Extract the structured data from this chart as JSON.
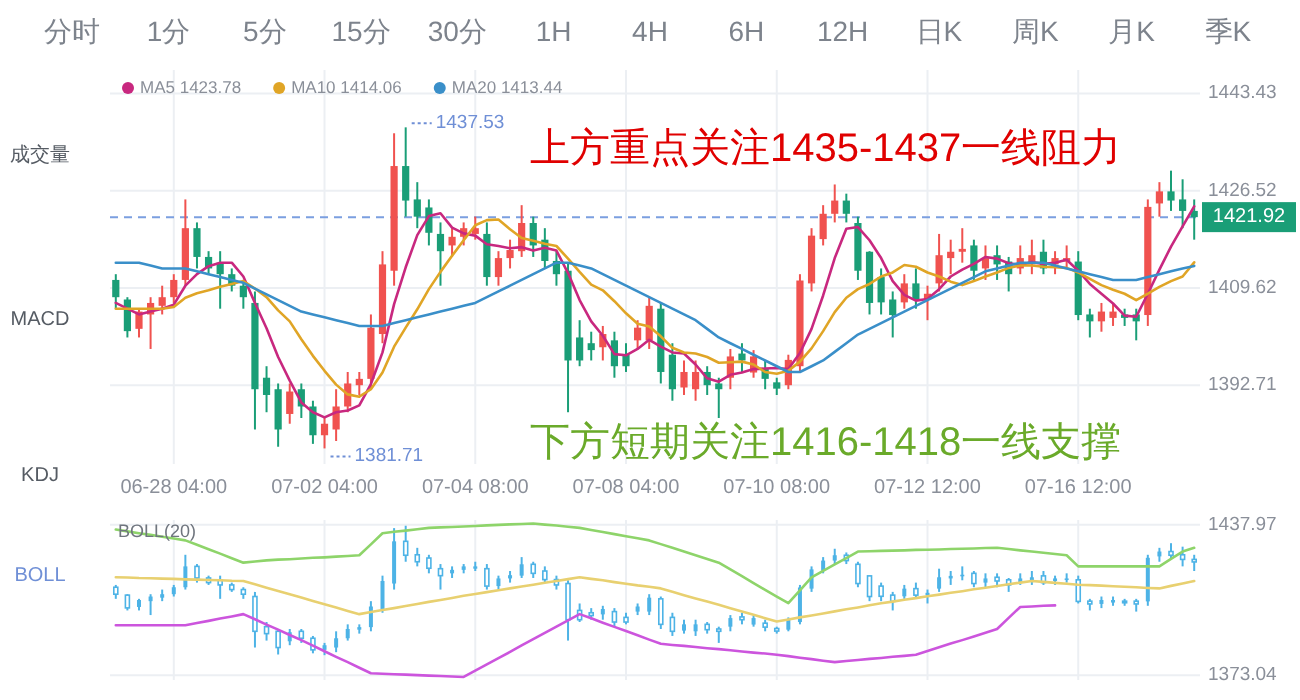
{
  "chart_data": [
    {
      "type": "candlestick",
      "categories": [
        null,
        null,
        null,
        null,
        null,
        "06-28 04:00",
        null,
        null,
        null,
        null,
        null,
        null,
        null,
        null,
        null,
        null,
        null,
        null,
        "07-02 04:00",
        null,
        null,
        null,
        null,
        null,
        null,
        null,
        null,
        null,
        null,
        null,
        null,
        "07-04 08:00",
        null,
        null,
        null,
        null,
        null,
        null,
        null,
        null,
        null,
        null,
        null,
        null,
        "07-08 04:00",
        null,
        null,
        null,
        null,
        null,
        null,
        null,
        null,
        null,
        null,
        null,
        null,
        "07-10 08:00",
        null,
        null,
        null,
        null,
        null,
        null,
        null,
        null,
        null,
        null,
        null,
        null,
        "07-12 12:00",
        null,
        null,
        null,
        null,
        null,
        null,
        null,
        null,
        null,
        null,
        null,
        null,
        "07-16 12:00",
        null,
        null,
        null,
        null,
        null,
        null,
        null,
        null,
        null,
        null
      ],
      "series": [
        {
          "type": "candlestick",
          "colors": [
            "#1a9e77",
            "#1a9e77",
            "#f0524f",
            "#f0524f",
            "#f0524f",
            "#f0524f",
            "#f0524f",
            "#1a9e77",
            "#1a9e77",
            "#1a9e77",
            "#1a9e77",
            "#1a9e77",
            "#1a9e77",
            "#1a9e77",
            "#1a9e77",
            "#f0524f",
            "#1a9e77",
            "#1a9e77",
            "#f0524f",
            "#f0524f",
            "#f0524f",
            "#f0524f",
            "#f0524f",
            "#f0524f",
            "#f0524f",
            "#1a9e77",
            "#1a9e77",
            "#1a9e77",
            "#1a9e77",
            "#f0524f",
            "#f0524f",
            "#f0524f",
            "#1a9e77",
            "#f0524f",
            "#f0524f",
            "#f0524f",
            "#1a9e77",
            "#1a9e77",
            "#1a9e77",
            "#1a9e77",
            "#1a9e77",
            "#1a9e77",
            "#f0524f",
            "#1a9e77",
            "#1a9e77",
            "#f0524f",
            "#f0524f",
            "#1a9e77",
            "#1a9e77",
            "#f0524f",
            "#f0524f",
            "#1a9e77",
            "#1a9e77",
            "#f0524f",
            "#1a9e77",
            "#f0524f",
            "#1a9e77",
            "#1a9e77",
            "#f0524f",
            "#f0524f",
            "#f0524f",
            "#f0524f",
            "#f0524f",
            "#1a9e77",
            "#1a9e77",
            "#1a9e77",
            "#1a9e77",
            "#1a9e77",
            "#f0524f",
            "#1a9e77",
            "#f0524f",
            "#f0524f",
            "#f0524f",
            "#f0524f",
            "#1a9e77",
            "#f0524f",
            "#1a9e77",
            "#1a9e77",
            "#f0524f",
            "#f0524f",
            "#1a9e77",
            "#f0524f",
            "#f0524f",
            "#1a9e77",
            "#1a9e77",
            "#f0524f",
            "#f0524f",
            "#1a9e77",
            "#1a9e77",
            "#f0524f",
            "#f0524f",
            "#1a9e77",
            "#1a9e77",
            "#1a9e77"
          ],
          "ohlc": [
            [
              1411,
              1412,
              1406,
              1408
            ],
            [
              1407.6,
              1408,
              1401,
              1402.1
            ],
            [
              1402.5,
              1406,
              1401,
              1405.5
            ],
            [
              1405,
              1408,
              1399,
              1407
            ],
            [
              1406.5,
              1410,
              1405,
              1408
            ],
            [
              1408,
              1412,
              1407,
              1411
            ],
            [
              1411,
              1425,
              1410,
              1420
            ],
            [
              1420,
              1421,
              1413,
              1415
            ],
            [
              1415,
              1416,
              1412,
              1413
            ],
            [
              1414,
              1416,
              1406,
              1412
            ],
            [
              1412,
              1413,
              1409,
              1410
            ],
            [
              1410,
              1411,
              1406,
              1408
            ],
            [
              1407,
              1409,
              1385,
              1392
            ],
            [
              1394,
              1396,
              1388,
              1391
            ],
            [
              1392,
              1393,
              1382,
              1385
            ],
            [
              1387.7,
              1393,
              1386,
              1391.6
            ],
            [
              1392,
              1393,
              1387,
              1389
            ],
            [
              1389,
              1390,
              1382.5,
              1384
            ],
            [
              1384,
              1387,
              1381.71,
              1386
            ],
            [
              1385,
              1392,
              1383,
              1389
            ],
            [
              1389,
              1395,
              1388,
              1393
            ],
            [
              1392.7,
              1395,
              1391,
              1393.8
            ],
            [
              1393.8,
              1405,
              1392,
              1402.7
            ],
            [
              1401.6,
              1416,
              1400,
              1413.7
            ],
            [
              1412.6,
              1436.5,
              1410,
              1430.8
            ],
            [
              1430.8,
              1437.53,
              1422,
              1424.8
            ],
            [
              1425,
              1428,
              1420,
              1422
            ],
            [
              1423.6,
              1425,
              1417,
              1419.2
            ],
            [
              1419,
              1421,
              1410,
              1416
            ],
            [
              1417,
              1420,
              1415,
              1418.5
            ],
            [
              1418.5,
              1421,
              1417,
              1420
            ],
            [
              1419,
              1422,
              1418,
              1420
            ],
            [
              1419,
              1421,
              1410,
              1411.5
            ],
            [
              1411.5,
              1416,
              1410,
              1414.8
            ],
            [
              1414.8,
              1418,
              1413,
              1416.2
            ],
            [
              1416,
              1424,
              1415,
              1420.9
            ],
            [
              1420.9,
              1422,
              1415,
              1417
            ],
            [
              1418,
              1420,
              1413,
              1414.3
            ],
            [
              1414.3,
              1416,
              1410,
              1412
            ],
            [
              1412.6,
              1414,
              1388,
              1397
            ],
            [
              1401,
              1404,
              1396,
              1397
            ],
            [
              1400,
              1402,
              1397,
              1398.8
            ],
            [
              1399.3,
              1403,
              1397,
              1401.6
            ],
            [
              1400.5,
              1402,
              1394,
              1396
            ],
            [
              1398,
              1400,
              1395,
              1396
            ],
            [
              1400.5,
              1404,
              1399,
              1402.7
            ],
            [
              1400.5,
              1408,
              1399,
              1406.5
            ],
            [
              1406,
              1407,
              1393,
              1395
            ],
            [
              1398,
              1400,
              1390,
              1392
            ],
            [
              1392.3,
              1397,
              1391,
              1395
            ],
            [
              1392,
              1397,
              1390,
              1395
            ],
            [
              1395,
              1396,
              1391,
              1392.7
            ],
            [
              1393,
              1394,
              1387,
              1392
            ],
            [
              1394,
              1399,
              1392,
              1397.7
            ],
            [
              1398.2,
              1400,
              1395,
              1397
            ],
            [
              1394.9,
              1398.8,
              1394,
              1397.7
            ],
            [
              1395.5,
              1397,
              1392,
              1393.8
            ],
            [
              1393.2,
              1394,
              1391,
              1392.1
            ],
            [
              1392.7,
              1398,
              1392,
              1397.1
            ],
            [
              1396,
              1412,
              1395,
              1410.9
            ],
            [
              1410.4,
              1420,
              1409,
              1418.7
            ],
            [
              1418.1,
              1424,
              1417,
              1422.5
            ],
            [
              1422.5,
              1427.6,
              1421,
              1424.8
            ],
            [
              1424.8,
              1426,
              1421,
              1422.5
            ],
            [
              1420.9,
              1422,
              1411,
              1412.6
            ],
            [
              1415.9,
              1416,
              1405,
              1407
            ],
            [
              1411.5,
              1413,
              1405,
              1407.1
            ],
            [
              1407.6,
              1409,
              1401,
              1404.9
            ],
            [
              1407.1,
              1412,
              1406,
              1410.4
            ],
            [
              1410.4,
              1413,
              1406,
              1407.6
            ],
            [
              1407.6,
              1410,
              1404,
              1408.6
            ],
            [
              1410.4,
              1419,
              1409,
              1415.3
            ],
            [
              1414.8,
              1418,
              1412,
              1415.9
            ],
            [
              1415.9,
              1420,
              1414,
              1416.4
            ],
            [
              1417,
              1418,
              1411,
              1412.6
            ],
            [
              1413,
              1417,
              1411,
              1414.8
            ],
            [
              1415.3,
              1417,
              1411,
              1413.7
            ],
            [
              1414.2,
              1415,
              1409,
              1412
            ],
            [
              1413,
              1417,
              1412,
              1414.8
            ],
            [
              1413.7,
              1418,
              1412,
              1415.3
            ],
            [
              1415.9,
              1418,
              1412,
              1413
            ],
            [
              1413.7,
              1416,
              1412,
              1414.8
            ],
            [
              1414.2,
              1417,
              1413,
              1414.8
            ],
            [
              1414.2,
              1416,
              1404,
              1404.9
            ],
            [
              1405,
              1406,
              1401,
              1403.8
            ],
            [
              1403.8,
              1407,
              1402,
              1405.5
            ],
            [
              1404.4,
              1407,
              1403,
              1405.5
            ],
            [
              1405,
              1406,
              1403,
              1404.4
            ],
            [
              1405,
              1406,
              1400.5,
              1403.8
            ],
            [
              1404.9,
              1425,
              1403,
              1423.7
            ],
            [
              1424.3,
              1428,
              1422,
              1426.4
            ],
            [
              1426.4,
              1430,
              1423,
              1424.8
            ],
            [
              1425,
              1428.5,
              1420,
              1423
            ],
            [
              1423,
              1425,
              1418,
              1421.92
            ]
          ]
        },
        {
          "type": "line",
          "name": "MA5 1423.78",
          "color": "#c8287f",
          "values": [
            1407,
            1406,
            1405,
            1405.5,
            1406,
            1406.7,
            1410,
            1412,
            1413.4,
            1414,
            1414,
            1411.6,
            1407,
            1402.6,
            1397.6,
            1393.5,
            1389.7,
            1388,
            1387.1,
            1388,
            1388.3,
            1389.2,
            1392.9,
            1398.4,
            1406.8,
            1413.2,
            1418.8,
            1422.1,
            1422.6,
            1420.1,
            1419.1,
            1418.7,
            1417.2,
            1416.9,
            1416.5,
            1416.7,
            1416.1,
            1416.6,
            1416.1,
            1412.2,
            1407.5,
            1403.8,
            1401.3,
            1398.1,
            1397.9,
            1399,
            1400.6,
            1399.4,
            1398.4,
            1398.2,
            1396.3,
            1393.9,
            1393.3,
            1394.5,
            1394.9,
            1395.5,
            1395.6,
            1395.7,
            1395.5,
            1398.3,
            1402.5,
            1408.3,
            1414.8,
            1419.9,
            1420.2,
            1417.9,
            1414.8,
            1410.8,
            1408.4,
            1407.4,
            1407.7,
            1409.4,
            1411.6,
            1412.8,
            1413.8,
            1415,
            1414.7,
            1413.9,
            1413.6,
            1414.1,
            1413.8,
            1414,
            1414.5,
            1412.6,
            1410.3,
            1408.6,
            1406.9,
            1404.8,
            1404.6,
            1408.6,
            1412.8,
            1416.8,
            1420.3,
            1423.78
          ]
        },
        {
          "type": "line",
          "name": "MA10 1414.06",
          "color": "#e0a526",
          "values": [
            1406,
            1406,
            1406,
            1406,
            1406,
            1406.3,
            1407.9,
            1408.7,
            1409.2,
            1409.8,
            1410.3,
            1410.8,
            1409.5,
            1408,
            1405.7,
            1403.8,
            1400.7,
            1397.8,
            1395.2,
            1392.8,
            1391.1,
            1390.7,
            1392,
            1394.9,
            1399.4,
            1402.7,
            1405.9,
            1409.4,
            1412.4,
            1415.2,
            1417.9,
            1420.5,
            1421.4,
            1421.5,
            1419.8,
            1418.3,
            1417.8,
            1417.3,
            1416.9,
            1414.7,
            1412.4,
            1410.2,
            1409.2,
            1407.3,
            1405.2,
            1403.4,
            1402.9,
            1401.2,
            1399.2,
            1398.4,
            1398.2,
            1397.6,
            1396.6,
            1396.7,
            1396.8,
            1396.3,
            1395,
            1394.7,
            1395.2,
            1396.8,
            1399.1,
            1402.1,
            1405.4,
            1407.9,
            1409.4,
            1410.3,
            1411.6,
            1412.3,
            1413.6,
            1413.3,
            1412.3,
            1411.6,
            1410.7,
            1410.1,
            1410.8,
            1411.6,
            1412.3,
            1413.1,
            1413.5,
            1413.5,
            1413.3,
            1413.2,
            1413.1,
            1412.3,
            1411.2,
            1410.1,
            1409.3,
            1408.6,
            1407.5,
            1408.6,
            1409.8,
            1410.8,
            1411.6,
            1414.06
          ]
        },
        {
          "type": "line",
          "name": "MA20 1413.44",
          "color": "#3a8fc9",
          "values": [
            1414,
            1414,
            1414,
            1413.5,
            1413,
            1413,
            1413,
            1412.5,
            1412,
            1411.5,
            1411,
            1410.5,
            1409.5,
            1408.5,
            1407.5,
            1406.5,
            1405.5,
            1405,
            1404.5,
            1404,
            1403.5,
            1403,
            1403,
            1403,
            1403.5,
            1404,
            1404.5,
            1405,
            1405.5,
            1406,
            1406.5,
            1407,
            1408,
            1409,
            1410,
            1411,
            1412,
            1413,
            1414,
            1414,
            1413.5,
            1413,
            1412,
            1411,
            1410,
            1409,
            1408,
            1407,
            1406,
            1405,
            1404,
            1402.5,
            1401,
            1400,
            1399,
            1398,
            1397,
            1396,
            1395,
            1395,
            1396,
            1397,
            1398.5,
            1400,
            1401.5,
            1402.5,
            1403.5,
            1404.5,
            1405.5,
            1406.5,
            1407.5,
            1408.5,
            1409.5,
            1410.5,
            1411.5,
            1412.5,
            1413,
            1413.5,
            1414,
            1414,
            1414,
            1413.5,
            1413,
            1412.5,
            1412,
            1411.5,
            1411,
            1411,
            1411,
            1411.5,
            1412,
            1412.5,
            1413,
            1413.44
          ]
        }
      ],
      "ylim": [
        1379,
        1447.5
      ],
      "yticks": [
        1443.43,
        1426.52,
        1409.62,
        1392.71
      ],
      "grid": true,
      "legend": "top left",
      "ref_lines": [
        {
          "axis": "y",
          "value": 1421.92,
          "label": "1421.92",
          "color": "#7b9fe0",
          "line_style": "dashed"
        }
      ],
      "annotations": [
        "分时",
        "1分",
        "5分",
        "15分",
        "30分",
        "1H",
        "4H",
        "6H",
        "12H",
        "日K",
        "周K",
        "月K",
        "季K",
        "成交量",
        "MACD",
        "KDJ",
        "BOLL",
        "上方重点关注1435-1437一线阻力",
        "下方短期关注1416-1418一线支撑",
        "1437.53",
        "1381.71"
      ]
    },
    {
      "type": "candlestick",
      "categories": [
        null,
        null,
        null,
        null,
        null,
        null,
        null,
        null,
        null,
        null,
        null,
        null,
        null,
        null,
        null,
        null,
        null,
        null,
        null,
        null,
        null,
        null,
        null,
        null,
        null,
        null,
        null,
        null,
        null,
        null,
        null,
        null,
        null,
        null,
        null,
        null,
        null,
        null,
        null,
        null,
        null,
        null,
        null,
        null,
        null,
        null,
        null,
        null,
        null,
        null,
        null,
        null,
        null,
        null,
        null,
        null,
        null,
        null,
        null,
        null,
        null,
        null,
        null,
        null,
        null,
        null,
        null,
        null,
        null,
        null,
        null,
        null,
        null,
        null,
        null,
        null,
        null,
        null,
        null,
        null,
        null,
        null,
        null,
        null,
        null,
        null,
        null,
        null,
        null,
        null,
        null,
        null,
        null,
        null
      ],
      "series": [
        {
          "type": "candlestick",
          "color": "#4db3e6",
          "ohlc": [
            [
              1411,
              1412,
              1406,
              1408
            ],
            [
              1407.6,
              1408,
              1401,
              1402.1
            ],
            [
              1402.5,
              1406,
              1401,
              1405.5
            ],
            [
              1405,
              1408,
              1399,
              1407
            ],
            [
              1406.5,
              1410,
              1405,
              1408
            ],
            [
              1408,
              1412,
              1407,
              1411
            ],
            [
              1411,
              1425,
              1410,
              1420
            ],
            [
              1420,
              1421,
              1413,
              1415
            ],
            [
              1415,
              1416,
              1412,
              1413
            ],
            [
              1414,
              1416,
              1406,
              1412
            ],
            [
              1412,
              1413,
              1409,
              1410
            ],
            [
              1410,
              1411,
              1406,
              1408
            ],
            [
              1407,
              1409,
              1385,
              1392
            ],
            [
              1394,
              1396,
              1388,
              1391
            ],
            [
              1392,
              1393,
              1382,
              1385
            ],
            [
              1387.7,
              1393,
              1386,
              1391.6
            ],
            [
              1392,
              1393,
              1387,
              1389
            ],
            [
              1389,
              1390,
              1382.5,
              1384
            ],
            [
              1384,
              1387,
              1381.71,
              1386
            ],
            [
              1385,
              1392,
              1383,
              1389
            ],
            [
              1389,
              1395,
              1388,
              1393
            ],
            [
              1392.7,
              1395,
              1391,
              1393.8
            ],
            [
              1393.8,
              1405,
              1392,
              1402.7
            ],
            [
              1401.6,
              1416,
              1400,
              1413.7
            ],
            [
              1412.6,
              1436.5,
              1410,
              1430.8
            ],
            [
              1430.8,
              1437.53,
              1422,
              1424.8
            ],
            [
              1425,
              1428,
              1420,
              1422
            ],
            [
              1423.6,
              1425,
              1417,
              1419.2
            ],
            [
              1419,
              1421,
              1410,
              1416
            ],
            [
              1417,
              1420,
              1415,
              1418.5
            ],
            [
              1418.5,
              1421,
              1417,
              1420
            ],
            [
              1419,
              1422,
              1418,
              1420
            ],
            [
              1419,
              1421,
              1410,
              1411.5
            ],
            [
              1411.5,
              1416,
              1410,
              1414.8
            ],
            [
              1414.8,
              1418,
              1413,
              1416.2
            ],
            [
              1416,
              1424,
              1415,
              1420.9
            ],
            [
              1420.9,
              1422,
              1415,
              1417
            ],
            [
              1418,
              1420,
              1413,
              1414.3
            ],
            [
              1414.3,
              1416,
              1410,
              1412
            ],
            [
              1412.6,
              1414,
              1388,
              1397
            ],
            [
              1401,
              1404,
              1396,
              1397
            ],
            [
              1400,
              1402,
              1397,
              1398.8
            ],
            [
              1399.3,
              1403,
              1397,
              1401.6
            ],
            [
              1400.5,
              1402,
              1394,
              1396
            ],
            [
              1398,
              1400,
              1395,
              1396
            ],
            [
              1400.5,
              1404,
              1399,
              1402.7
            ],
            [
              1400.5,
              1408,
              1399,
              1406.5
            ],
            [
              1406,
              1407,
              1393,
              1395
            ],
            [
              1398,
              1400,
              1390,
              1392
            ],
            [
              1392.3,
              1397,
              1391,
              1395
            ],
            [
              1392,
              1397,
              1390,
              1395
            ],
            [
              1395,
              1396,
              1391,
              1392.7
            ],
            [
              1393,
              1394,
              1387,
              1392
            ],
            [
              1394,
              1399,
              1392,
              1397.7
            ],
            [
              1398.2,
              1400,
              1395,
              1397
            ],
            [
              1394.9,
              1398.8,
              1394,
              1397.7
            ],
            [
              1395.5,
              1397,
              1392,
              1393.8
            ],
            [
              1393.2,
              1394,
              1391,
              1392.1
            ],
            [
              1392.7,
              1398,
              1392,
              1397.1
            ],
            [
              1396,
              1412,
              1395,
              1410.9
            ],
            [
              1410.4,
              1420,
              1409,
              1418.7
            ],
            [
              1418.1,
              1424,
              1417,
              1422.5
            ],
            [
              1422.5,
              1427.6,
              1421,
              1424.8
            ],
            [
              1424.8,
              1426,
              1421,
              1422.5
            ],
            [
              1420.9,
              1422,
              1411,
              1412.6
            ],
            [
              1415.9,
              1416,
              1405,
              1407
            ],
            [
              1411.5,
              1413,
              1405,
              1407.1
            ],
            [
              1407.6,
              1409,
              1401,
              1404.9
            ],
            [
              1407.1,
              1412,
              1406,
              1410.4
            ],
            [
              1410.4,
              1413,
              1406,
              1407.6
            ],
            [
              1407.6,
              1410,
              1404,
              1408.6
            ],
            [
              1410.4,
              1419,
              1409,
              1415.3
            ],
            [
              1414.8,
              1418,
              1412,
              1415.9
            ],
            [
              1415.9,
              1420,
              1414,
              1416.4
            ],
            [
              1417,
              1418,
              1411,
              1412.6
            ],
            [
              1413,
              1417,
              1411,
              1414.8
            ],
            [
              1415.3,
              1417,
              1411,
              1413.7
            ],
            [
              1414.2,
              1415,
              1409,
              1412
            ],
            [
              1413,
              1417,
              1412,
              1414.8
            ],
            [
              1413.7,
              1418,
              1412,
              1415.3
            ],
            [
              1415.9,
              1418,
              1412,
              1413
            ],
            [
              1413.7,
              1416,
              1412,
              1414.8
            ],
            [
              1414.2,
              1417,
              1413,
              1414.8
            ],
            [
              1414.2,
              1416,
              1404,
              1404.9
            ],
            [
              1405,
              1406,
              1401,
              1403.8
            ],
            [
              1403.8,
              1407,
              1402,
              1405.5
            ],
            [
              1404.4,
              1407,
              1403,
              1405.5
            ],
            [
              1405,
              1406,
              1403,
              1404.4
            ],
            [
              1405,
              1406,
              1400.5,
              1403.8
            ],
            [
              1404.9,
              1425,
              1403,
              1423.7
            ],
            [
              1424.3,
              1428,
              1422,
              1426.4
            ],
            [
              1426.4,
              1430,
              1423,
              1424.8
            ],
            [
              1425,
              1428.5,
              1420,
              1423
            ],
            [
              1423,
              1425,
              1418,
              1421.92
            ]
          ]
        },
        {
          "type": "line",
          "color": "#8ed46a",
          "values": [
            1435.9,
            1435.1,
            1434.3,
            1433.6,
            1432.8,
            1432,
            1431.2,
            1429.3,
            1427.4,
            1425.5,
            1423.5,
            1421.6,
            1422.1,
            1422.6,
            1422.9,
            1423.1,
            1423.4,
            1423.7,
            1423.9,
            1424.2,
            1424.5,
            1424.8,
            1429.5,
            1434.3,
            1434.9,
            1435.4,
            1436,
            1436.6,
            1436.8,
            1437,
            1437.2,
            1437.4,
            1437.7,
            1437.9,
            1438.1,
            1438.3,
            1438.5,
            1438,
            1437.6,
            1437.1,
            1436.6,
            1435.7,
            1434.8,
            1433.9,
            1433,
            1432.1,
            1431.2,
            1429.6,
            1428,
            1426.4,
            1424.8,
            1423.2,
            1421.6,
            1418.7,
            1415.8,
            1412.8,
            1409.9,
            1407,
            1404.1,
            1409.7,
            1415.3,
            1418.1,
            1420.9,
            1423.6,
            1426.4,
            1426.5,
            1426.7,
            1426.8,
            1426.9,
            1427.1,
            1427.2,
            1427.3,
            1427.5,
            1427.6,
            1427.7,
            1427.9,
            1428,
            1427.5,
            1426.9,
            1426.4,
            1425.9,
            1425.3,
            1424.8,
            1420,
            1420,
            1420,
            1420,
            1420,
            1420,
            1420,
            1420,
            1423.2,
            1426.4,
            1428
          ]
        },
        {
          "type": "line",
          "color": "#e8d070",
          "values": [
            1415.3,
            1415.2,
            1415,
            1414.9,
            1414.7,
            1414.6,
            1414.4,
            1414.3,
            1414.1,
            1414,
            1413.8,
            1413.7,
            1412.3,
            1410.8,
            1409.4,
            1408,
            1406.6,
            1405.1,
            1403.7,
            1402.3,
            1400.8,
            1399.4,
            1400.3,
            1401.2,
            1402,
            1402.9,
            1403.8,
            1404.7,
            1405.5,
            1406.4,
            1407.3,
            1408.1,
            1408.9,
            1409.7,
            1410.5,
            1411.3,
            1412.1,
            1412.9,
            1413.7,
            1414.5,
            1415.3,
            1414.6,
            1414,
            1413.2,
            1412.5,
            1411.8,
            1411.2,
            1410.5,
            1409.1,
            1407.6,
            1406.2,
            1404.8,
            1403.4,
            1401.9,
            1400.5,
            1399.1,
            1397.6,
            1396.2,
            1397.1,
            1398,
            1398.8,
            1399.7,
            1400.6,
            1401.5,
            1402.3,
            1403.2,
            1404.1,
            1404.8,
            1405.6,
            1406.3,
            1407.1,
            1407.8,
            1408.6,
            1409.3,
            1410.1,
            1410.8,
            1411.5,
            1412.3,
            1413,
            1413.7,
            1413.3,
            1412.9,
            1412.5,
            1412.1,
            1411.9,
            1411.7,
            1411.4,
            1411.2,
            1411,
            1410.7,
            1410.5,
            1411.6,
            1412.6,
            1413.7
          ]
        },
        {
          "type": "line",
          "color": "#cc55dd",
          "values": [
            1394.6,
            1394.6,
            1394.6,
            1394.6,
            1394.6,
            1394.6,
            1394.6,
            1395.6,
            1396.5,
            1397.5,
            1398.4,
            1399.4,
            1397.2,
            1394.9,
            1392.7,
            1390.4,
            1388.2,
            1385.8,
            1383.4,
            1381,
            1378.7,
            1376.3,
            1373.9,
            1373.7,
            1373.5,
            1373.3,
            1373.1,
            1372.9,
            1372.7,
            1372.5,
            1372.3,
            1375,
            1377.7,
            1380.4,
            1383.1,
            1385.9,
            1388.6,
            1391.3,
            1394,
            1396.7,
            1399.4,
            1397.6,
            1395.7,
            1393.9,
            1392.1,
            1390.3,
            1388.4,
            1386.6,
            1386.1,
            1385.7,
            1385.2,
            1384.7,
            1384.3,
            1383.8,
            1383.3,
            1382.8,
            1382.4,
            1381.9,
            1381.3,
            1380.6,
            1380,
            1379.3,
            1378.7,
            1379.2,
            1379.6,
            1380.1,
            1380.5,
            1381,
            1381.4,
            1381.9,
            1383.5,
            1385.1,
            1386.7,
            1388.2,
            1389.8,
            1391.4,
            1393,
            1397.8,
            1402.5,
            1402.7,
            1403,
            1403.2,
            null,
            null,
            null,
            null,
            null,
            null,
            null,
            null,
            null,
            null,
            null,
            null
          ]
        }
      ],
      "ylim": [
        1371,
        1440
      ],
      "yticks": [
        1437.97,
        1373.04
      ],
      "grid": true,
      "tick_labels": "y",
      "annotations": [
        "BOLL(20)"
      ]
    }
  ]
}
